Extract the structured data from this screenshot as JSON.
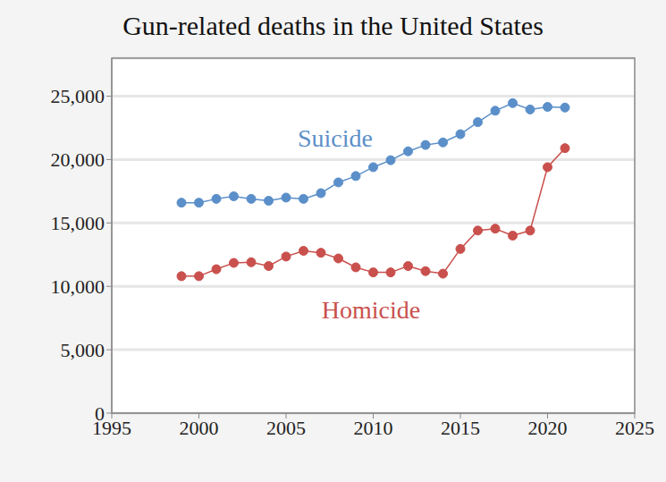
{
  "chart_data": {
    "type": "line",
    "title": "Gun-related deaths in the United States",
    "x": [
      1999,
      2000,
      2001,
      2002,
      2003,
      2004,
      2005,
      2006,
      2007,
      2008,
      2009,
      2010,
      2011,
      2012,
      2013,
      2014,
      2015,
      2016,
      2017,
      2018,
      2019,
      2020,
      2021
    ],
    "series": [
      {
        "name": "Suicide",
        "color": "#5b8fc9",
        "marker": "circle",
        "values": [
          16600,
          16600,
          16900,
          17100,
          16900,
          16750,
          17000,
          16900,
          17350,
          18200,
          18700,
          19400,
          19950,
          20650,
          21150,
          21350,
          22000,
          22950,
          23850,
          24450,
          23950,
          24150,
          24100
        ]
      },
      {
        "name": "Homicide",
        "color": "#c9504c",
        "marker": "circle",
        "values": [
          10800,
          10800,
          11350,
          11850,
          11900,
          11600,
          12350,
          12800,
          12650,
          12200,
          11500,
          11100,
          11100,
          11600,
          11200,
          11000,
          12950,
          14400,
          14550,
          14000,
          14400,
          19400,
          20900
        ]
      }
    ],
    "xlim": [
      1995,
      2025
    ],
    "xticks": [
      1995,
      2000,
      2005,
      2010,
      2015,
      2020,
      2025
    ],
    "ylim": [
      0,
      28000
    ],
    "yticks": [
      0,
      {
        "value": 5000,
        "label": "5,000"
      },
      {
        "value": 10000,
        "label": "10,000"
      },
      {
        "value": 15000,
        "label": "15,000"
      },
      {
        "value": 20000,
        "label": "20,000"
      },
      {
        "value": 25000,
        "label": "25,000"
      }
    ],
    "grid": true
  }
}
